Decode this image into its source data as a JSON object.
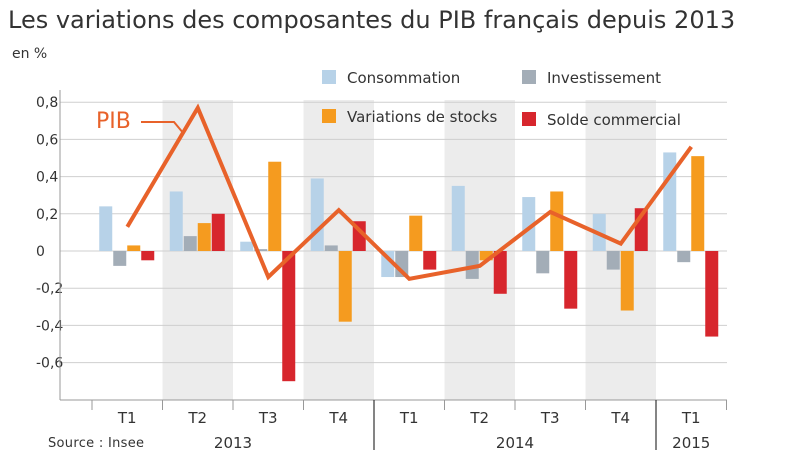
{
  "chart_data": {
    "type": "bar",
    "title": "Les variations des composantes du PIB français depuis 2013",
    "ylabel": "en %",
    "ylim": [
      -0.8,
      0.9
    ],
    "yticks": [
      0.8,
      0.6,
      0.4,
      0.2,
      0,
      -0.2,
      -0.4,
      -0.6
    ],
    "ytick_labels": [
      "0,8",
      "0,6",
      "0,4",
      "0,2",
      "0",
      "-0,2",
      "-0,4",
      "-0,6"
    ],
    "categories": [
      "T1",
      "T2",
      "T3",
      "T4",
      "T1",
      "T2",
      "T3",
      "T4",
      "T1"
    ],
    "years": [
      {
        "label": "2013",
        "start": 0,
        "end": 3
      },
      {
        "label": "2014",
        "start": 4,
        "end": 7
      },
      {
        "label": "2015",
        "start": 8,
        "end": 8
      }
    ],
    "shaded_categories": [
      1,
      3,
      5,
      7
    ],
    "series": [
      {
        "name": "Consommation",
        "color": "#b7d2e8",
        "values": [
          0.24,
          0.32,
          0.05,
          0.39,
          -0.14,
          0.35,
          0.29,
          0.2,
          0.53
        ]
      },
      {
        "name": "Investissement",
        "color": "#a3adb7",
        "values": [
          -0.08,
          0.08,
          0.01,
          0.03,
          -0.14,
          -0.15,
          -0.12,
          -0.1,
          -0.06
        ]
      },
      {
        "name": "Variations de stocks",
        "color": "#f59b1f",
        "values": [
          0.03,
          0.15,
          0.48,
          -0.38,
          0.19,
          -0.05,
          0.32,
          -0.32,
          0.51
        ]
      },
      {
        "name": "Solde commercial",
        "color": "#d7262d",
        "values": [
          -0.05,
          0.2,
          -0.7,
          0.16,
          -0.1,
          -0.23,
          -0.31,
          0.23,
          -0.46
        ]
      }
    ],
    "line": {
      "name": "PIB",
      "color": "#e8622a",
      "values": [
        0.13,
        0.77,
        -0.14,
        0.22,
        -0.15,
        -0.08,
        0.21,
        0.04,
        0.56
      ]
    },
    "legend_position": "top-right",
    "source": "Source : Insee"
  }
}
